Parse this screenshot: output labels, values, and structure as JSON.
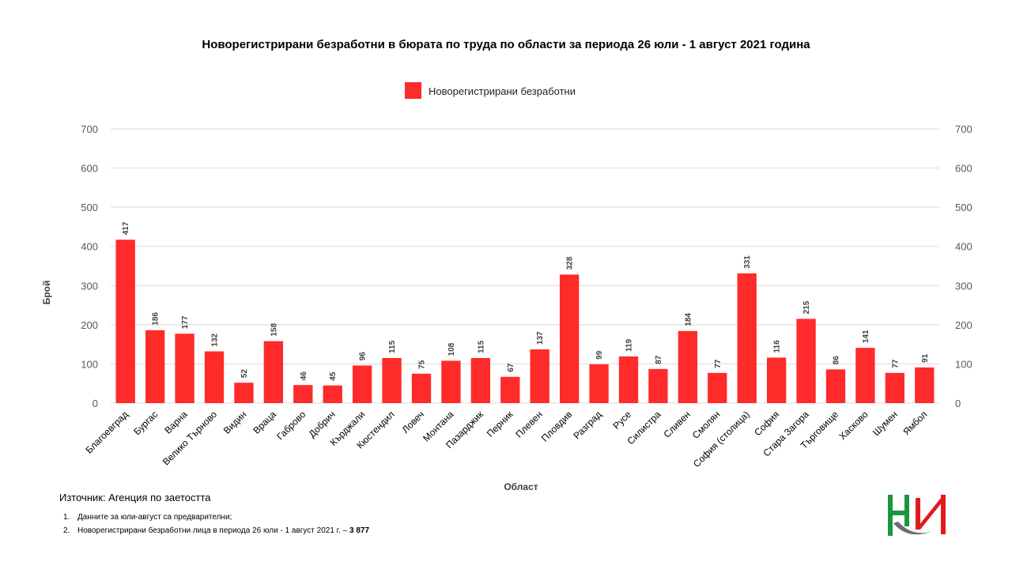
{
  "chart_data": {
    "type": "bar",
    "title": "Новорегистрирани безработни в бюрата по труда по области за периода 26 юли - 1 август 2021 година",
    "xlabel": "Област",
    "ylabel": "Брой",
    "ylim": [
      0,
      700
    ],
    "yticks": [
      0,
      100,
      200,
      300,
      400,
      500,
      600,
      700
    ],
    "grid": true,
    "legend_position": "top-center",
    "colors": {
      "bar": "#ff2a2a"
    },
    "categories": [
      "Благоевград",
      "Бургас",
      "Варна",
      "Велико Търново",
      "Видин",
      "Враца",
      "Габрово",
      "Добрич",
      "Кърджали",
      "Кюстендил",
      "Ловеч",
      "Монтана",
      "Пазарджик",
      "Перник",
      "Плевен",
      "Пловдив",
      "Разград",
      "Русе",
      "Силистра",
      "Сливен",
      "Смолян",
      "София (столица)",
      "София",
      "Стара Загора",
      "Търговище",
      "Хасково",
      "Шумен",
      "Ямбол"
    ],
    "series": [
      {
        "name": "Новорегистрирани безработни",
        "values": [
          417,
          186,
          177,
          132,
          52,
          158,
          46,
          45,
          96,
          115,
          75,
          108,
          115,
          67,
          137,
          328,
          99,
          119,
          87,
          184,
          77,
          331,
          116,
          215,
          86,
          141,
          77,
          91
        ]
      }
    ]
  },
  "footer": {
    "source": "Източник: Агенция по заетостта",
    "note1_num": "1.",
    "note1": "Данните за юли-август са предварителни;",
    "note2_num": "2.",
    "note2_text": "Новорегистрирани безработни лица в периода 26 юли - 1 август 2021 г. – ",
    "note2_value": "3 877"
  },
  "logo": {
    "icon": "nsi-logo-icon",
    "colors": {
      "green": "#1a9641",
      "red": "#e31a1c",
      "grey": "#6d6e71"
    }
  }
}
